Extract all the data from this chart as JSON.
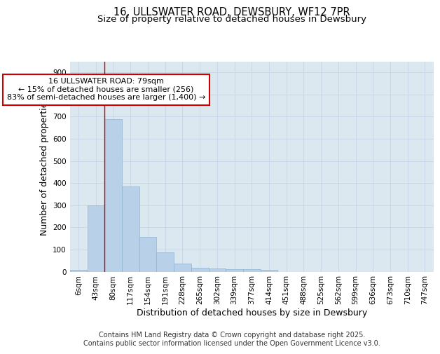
{
  "title_line1": "16, ULLSWATER ROAD, DEWSBURY, WF12 7PR",
  "title_line2": "Size of property relative to detached houses in Dewsbury",
  "xlabel": "Distribution of detached houses by size in Dewsbury",
  "ylabel": "Number of detached properties",
  "bar_color": "#b8d0e8",
  "bar_edge_color": "#90b4d0",
  "categories": [
    "6sqm",
    "43sqm",
    "80sqm",
    "117sqm",
    "154sqm",
    "191sqm",
    "228sqm",
    "265sqm",
    "302sqm",
    "339sqm",
    "377sqm",
    "414sqm",
    "451sqm",
    "488sqm",
    "525sqm",
    "562sqm",
    "599sqm",
    "636sqm",
    "673sqm",
    "710sqm",
    "747sqm"
  ],
  "values": [
    8,
    300,
    690,
    385,
    158,
    88,
    38,
    18,
    14,
    12,
    10,
    8,
    0,
    0,
    0,
    0,
    0,
    0,
    0,
    0,
    0
  ],
  "ylim": [
    0,
    950
  ],
  "yticks": [
    0,
    100,
    200,
    300,
    400,
    500,
    600,
    700,
    800,
    900
  ],
  "annotation_text": "16 ULLSWATER ROAD: 79sqm\n← 15% of detached houses are smaller (256)\n83% of semi-detached houses are larger (1,400) →",
  "annotation_box_color": "white",
  "annotation_border_color": "#cc0000",
  "vline_color": "#cc0000",
  "grid_color": "#c8d8e8",
  "background_color": "#dce8f0",
  "footer_text": "Contains HM Land Registry data © Crown copyright and database right 2025.\nContains public sector information licensed under the Open Government Licence v3.0.",
  "title_fontsize": 10.5,
  "subtitle_fontsize": 9.5,
  "axis_label_fontsize": 9,
  "tick_fontsize": 7.5,
  "annotation_fontsize": 8,
  "footer_fontsize": 7
}
